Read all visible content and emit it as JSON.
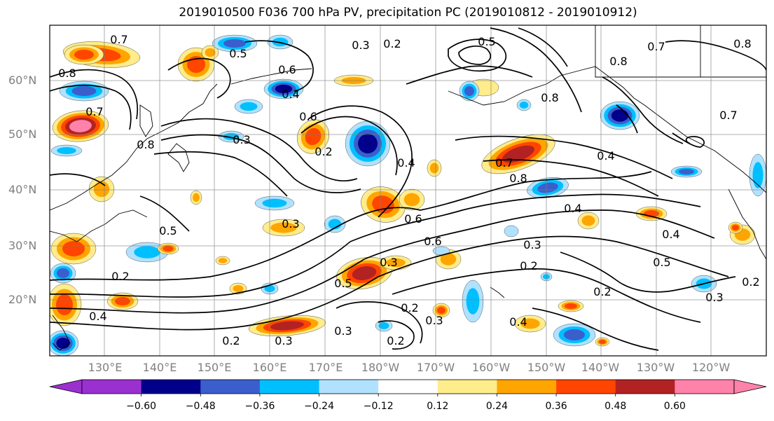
{
  "title": "2019010500 F036 700 hPa PV, precipitation PC (2019010812 - 2019010912)",
  "lat_labels": [
    "60°N",
    "50°N",
    "40°N",
    "30°N",
    "20°N"
  ],
  "lon_labels": [
    "130°E",
    "140°E",
    "150°E",
    "160°E",
    "170°E",
    "180°W",
    "170°W",
    "160°W",
    "150°W",
    "140°W",
    "130°W",
    "120°W"
  ],
  "colorbar": {
    "ticks": [
      "−0.60",
      "−0.48",
      "−0.36",
      "−0.24",
      "−0.12",
      "0.12",
      "0.24",
      "0.36",
      "0.48",
      "0.60"
    ],
    "colors": [
      "#9b30d0",
      "#00008b",
      "#3a5fcd",
      "#00bfff",
      "#b0e2ff",
      "#ffffff",
      "#ffec8b",
      "#ffa500",
      "#ff4500",
      "#b22222",
      "#ff82ab"
    ]
  },
  "contour_labels": [
    "0.7",
    "0.5",
    "0.3",
    "0.2",
    "0.6",
    "0.8",
    "0.7",
    "0.8",
    "0.4",
    "0.6",
    "0.3",
    "0.2",
    "0.4",
    "0.7",
    "0.8",
    "0.4",
    "0.5",
    "0.3",
    "0.6",
    "0.3",
    "0.2",
    "0.4",
    "0.2",
    "0.5",
    "0.3",
    "0.2",
    "0.3",
    "0.2",
    "0.3",
    "0.4",
    "0.2",
    "0.8",
    "0.7",
    "0.8",
    "0.4",
    "0.5",
    "0.3",
    "0.2",
    "0.4",
    "0.6",
    "0.5",
    "0.8",
    "0.7",
    "0.3",
    "0.2"
  ]
}
